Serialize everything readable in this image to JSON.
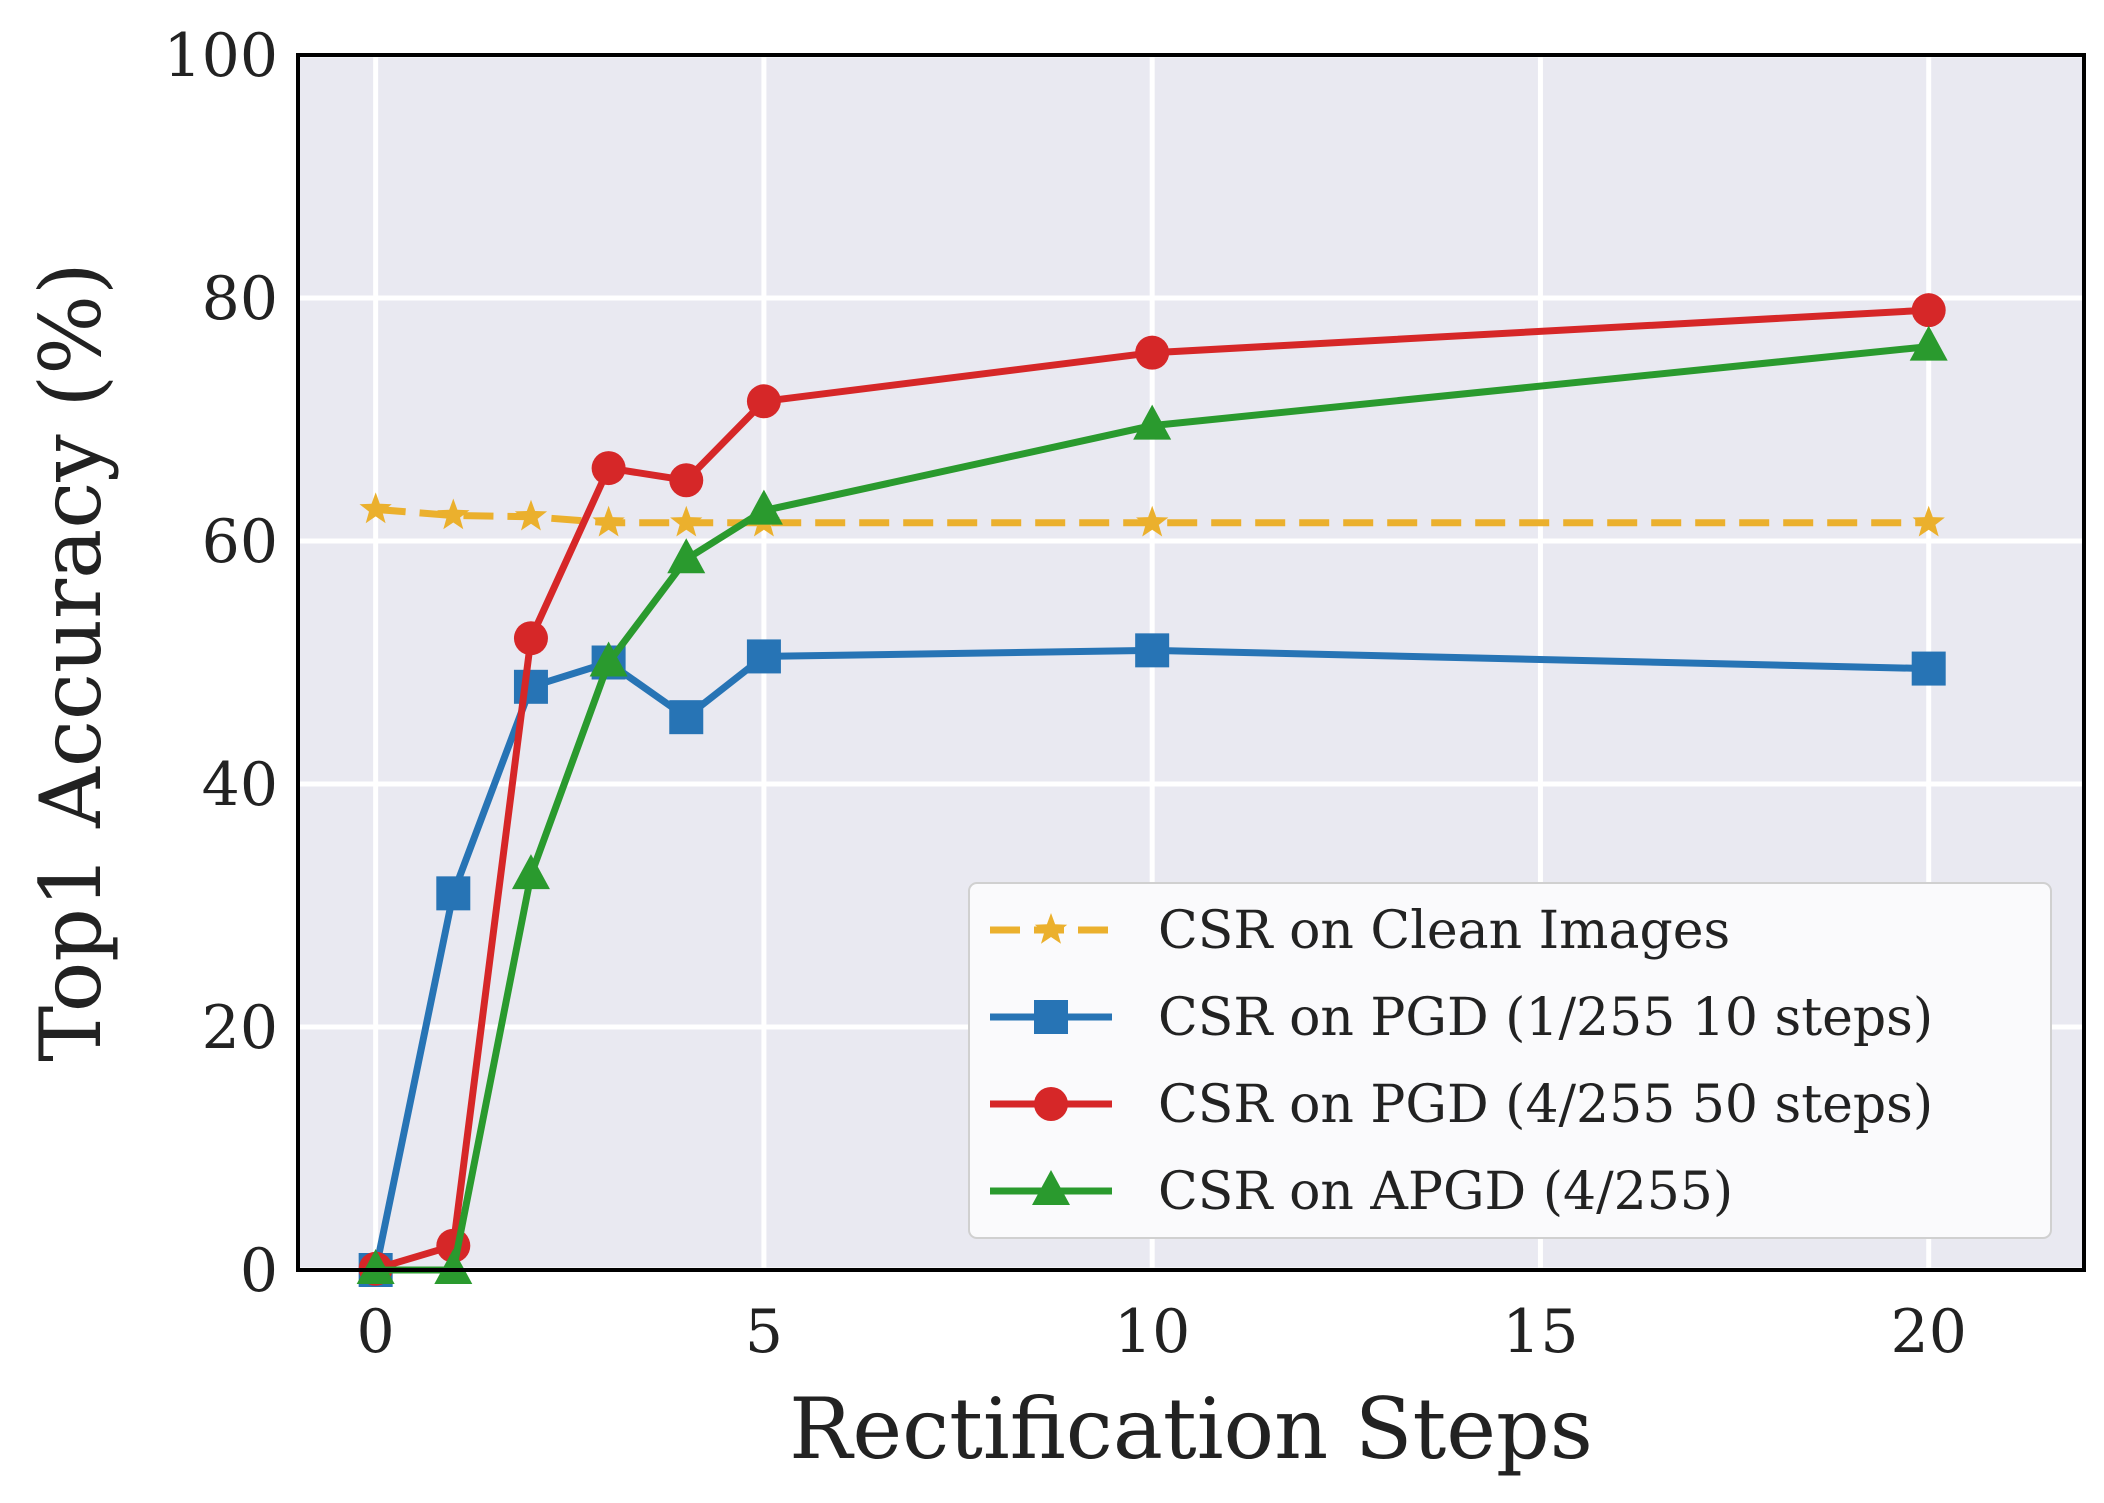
{
  "chart_data": {
    "type": "line",
    "title": "",
    "xlabel": "Rectification Steps",
    "ylabel": "Top1 Accuracy (%)",
    "xlim": [
      -1,
      22
    ],
    "ylim": [
      0,
      100
    ],
    "xticks": [
      0,
      5,
      10,
      15,
      20
    ],
    "yticks": [
      0,
      20,
      40,
      60,
      80,
      100
    ],
    "grid": true,
    "legend_position": "lower-right",
    "background_color": "#e9e9f1",
    "x": [
      0,
      1,
      2,
      3,
      4,
      5,
      10,
      20
    ],
    "series": [
      {
        "name": "CSR on Clean Images",
        "color": "#ebb02d",
        "line_style": "dashed",
        "marker": "star",
        "values": [
          62.6,
          62.1,
          62.0,
          61.5,
          61.5,
          61.5,
          61.5,
          61.5
        ]
      },
      {
        "name": "CSR on PGD (1/255 10 steps)",
        "color": "#2774b5",
        "line_style": "solid",
        "marker": "square",
        "values": [
          0.0,
          31.0,
          48.0,
          50.0,
          45.5,
          50.5,
          51.0,
          49.5
        ]
      },
      {
        "name": "CSR on PGD (4/255 50 steps)",
        "color": "#d62728",
        "line_style": "solid",
        "marker": "circle",
        "values": [
          0.1,
          2.0,
          52.0,
          66.0,
          65.0,
          71.5,
          75.5,
          79.0
        ]
      },
      {
        "name": "CSR on APGD (4/255)",
        "color": "#2a9a2e",
        "line_style": "solid",
        "marker": "triangle",
        "values": [
          0.0,
          0.0,
          32.5,
          50.0,
          58.5,
          62.5,
          69.5,
          76.0
        ]
      }
    ]
  }
}
